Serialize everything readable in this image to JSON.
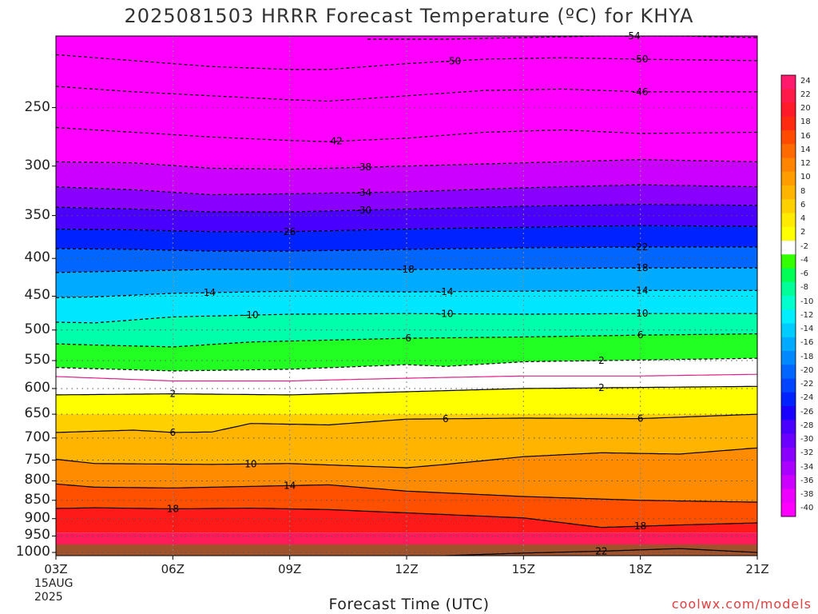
{
  "title": "2025081503 HRRR Forecast Temperature (ºC) for KHYA",
  "xlabel": "Forecast Time (UTC)",
  "credit": "coolwx.com/models",
  "date_label": [
    "15AUG",
    "2025"
  ],
  "chart_data": {
    "type": "heatmap",
    "title": "2025081503 HRRR Forecast Temperature (ºC) for KHYA",
    "xlabel": "Forecast Time (UTC)",
    "ylabel": "",
    "x_ticks": [
      "03Z",
      "06Z",
      "09Z",
      "12Z",
      "15Z",
      "18Z",
      "21Z"
    ],
    "x_hours": [
      3,
      21
    ],
    "y_ticks": [
      250,
      300,
      350,
      400,
      450,
      500,
      550,
      600,
      650,
      700,
      750,
      800,
      850,
      900,
      950,
      1000
    ],
    "y_range_hpa": [
      200,
      1010
    ],
    "y_scale": "log-pressure",
    "grid": true,
    "colorbar": {
      "labels": [
        "24",
        "22",
        "20",
        "18",
        "16",
        "14",
        "12",
        "10",
        "8",
        "6",
        "4",
        "2",
        "-2",
        "-4",
        "-6",
        "-8",
        "-10",
        "-12",
        "-14",
        "-16",
        "-18",
        "-20",
        "-22",
        "-24",
        "-26",
        "-28",
        "-30",
        "-32",
        "-34",
        "-36",
        "-38",
        "-40"
      ],
      "colors": [
        "#ff1a6e",
        "#ff1a4a",
        "#ff1a2a",
        "#ff2a10",
        "#ff4a00",
        "#ff6a00",
        "#ff8400",
        "#ff9c00",
        "#ffb400",
        "#ffd000",
        "#ffea00",
        "#ffff00",
        "#ffffff",
        "#33ff00",
        "#00ff55",
        "#00ff99",
        "#00ffcc",
        "#00eeff",
        "#00ccff",
        "#00aaff",
        "#0088ff",
        "#0066ff",
        "#0044ff",
        "#0022ff",
        "#1a00ff",
        "#4a00ff",
        "#6a00ff",
        "#8a00ff",
        "#aa00ff",
        "#cc00ff",
        "#ee00ff",
        "#ff00ff"
      ]
    },
    "contours": [
      {
        "label": "-54",
        "x": [
          11,
          13,
          15,
          17,
          19,
          21
        ],
        "p": [
          202,
          202,
          201,
          200,
          200,
          201
        ],
        "dashed": true,
        "labels_at": [
          {
            "hour": 17.8,
            "text": "-54"
          }
        ]
      },
      {
        "label": "-50",
        "x": [
          3,
          5,
          7,
          9,
          10,
          12,
          14,
          16,
          18,
          21
        ],
        "p": [
          212,
          216,
          220,
          222,
          222,
          218,
          215,
          214,
          215,
          216
        ],
        "dashed": true,
        "labels_at": [
          {
            "hour": 13.2,
            "text": "-50"
          },
          {
            "hour": 18,
            "text": "-50"
          }
        ]
      },
      {
        "label": "-46",
        "x": [
          3,
          5,
          7,
          9,
          10,
          12,
          14,
          16,
          18,
          21
        ],
        "p": [
          234,
          238,
          241,
          244,
          245,
          241,
          237,
          236,
          238,
          238
        ],
        "dashed": true,
        "labels_at": [
          {
            "hour": 18,
            "text": "-46"
          }
        ]
      },
      {
        "label": "-42",
        "x": [
          3,
          5,
          7,
          9,
          10,
          12,
          14,
          16,
          18,
          21
        ],
        "p": [
          266,
          270,
          274,
          277,
          278,
          275,
          270,
          268,
          271,
          270
        ],
        "dashed": true,
        "labels_at": [
          {
            "hour": 10.2,
            "text": "42"
          }
        ]
      },
      {
        "label": "-38",
        "x": [
          3,
          5,
          7,
          9,
          12,
          15,
          18,
          21
        ],
        "p": [
          296,
          297,
          302,
          303,
          300,
          297,
          294,
          296
        ],
        "dashed": true,
        "labels_at": [
          {
            "hour": 10.9,
            "text": "-38"
          }
        ]
      },
      {
        "label": "-34",
        "x": [
          3,
          5,
          7,
          9,
          12,
          15,
          18,
          21
        ],
        "p": [
          320,
          323,
          328,
          327,
          325,
          321,
          318,
          320
        ],
        "dashed": true,
        "labels_at": [
          {
            "hour": 10.9,
            "text": "-34"
          }
        ]
      },
      {
        "label": "-30",
        "x": [
          3,
          5,
          7,
          9,
          12,
          15,
          18,
          21
        ],
        "p": [
          341,
          343,
          346,
          346,
          343,
          340,
          338,
          339
        ],
        "dashed": true,
        "labels_at": [
          {
            "hour": 10.9,
            "text": "-30"
          }
        ]
      },
      {
        "label": "-26",
        "x": [
          3,
          5,
          7,
          9,
          12,
          15,
          18,
          21
        ],
        "p": [
          365,
          366,
          368,
          368,
          365,
          363,
          361,
          362
        ],
        "dashed": true,
        "labels_at": [
          {
            "hour": 9,
            "text": "26"
          }
        ]
      },
      {
        "label": "-22",
        "x": [
          3,
          5,
          7,
          9,
          12,
          15,
          18,
          21
        ],
        "p": [
          388,
          389,
          391,
          391,
          389,
          387,
          386,
          386
        ],
        "dashed": true,
        "labels_at": [
          {
            "hour": 18,
            "text": "-22"
          }
        ]
      },
      {
        "label": "-18",
        "x": [
          3,
          5,
          7,
          9,
          12,
          15,
          18,
          21
        ],
        "p": [
          418,
          416,
          414,
          414,
          414,
          413,
          412,
          412
        ],
        "dashed": true,
        "labels_at": [
          {
            "hour": 12,
            "text": "-18"
          },
          {
            "hour": 18,
            "text": "-18"
          }
        ]
      },
      {
        "label": "-14",
        "x": [
          3,
          4,
          6,
          9,
          12,
          15,
          18,
          21
        ],
        "p": [
          452,
          451,
          446,
          443,
          444,
          443,
          442,
          442
        ],
        "dashed": true,
        "labels_at": [
          {
            "hour": 6.9,
            "text": "-14"
          },
          {
            "hour": 13,
            "text": "-14"
          },
          {
            "hour": 18,
            "text": "-14"
          }
        ]
      },
      {
        "label": "-10",
        "x": [
          3,
          4,
          6,
          9,
          12,
          15,
          18,
          21
        ],
        "p": [
          488,
          489,
          480,
          476,
          475,
          476,
          475,
          475
        ],
        "dashed": true,
        "labels_at": [
          {
            "hour": 8,
            "text": "-10"
          },
          {
            "hour": 13,
            "text": "-10"
          },
          {
            "hour": 18,
            "text": "-10"
          }
        ]
      },
      {
        "label": "-6",
        "x": [
          3,
          4,
          6,
          8,
          12,
          15,
          18,
          21
        ],
        "p": [
          522,
          524,
          527,
          519,
          513,
          511,
          508,
          506
        ],
        "dashed": true,
        "labels_at": [
          {
            "hour": 12,
            "text": "-6"
          },
          {
            "hour": 18,
            "text": "6"
          }
        ]
      },
      {
        "label": "-2",
        "x": [
          3,
          6,
          9,
          12,
          13,
          15,
          18,
          21
        ],
        "p": [
          562,
          568,
          565,
          557,
          560,
          552,
          549,
          546
        ],
        "dashed": true,
        "labels_at": [
          {
            "hour": 17,
            "text": "2"
          }
        ]
      },
      {
        "label": "0",
        "x": [
          3,
          6,
          9,
          12,
          15,
          18,
          21
        ],
        "p": [
          578,
          586,
          586,
          581,
          577,
          577,
          574
        ],
        "dashed": false,
        "color": "#e0208a",
        "labels_at": []
      },
      {
        "label": "2",
        "x": [
          3,
          6,
          9,
          12,
          15,
          18,
          21
        ],
        "p": [
          612,
          610,
          612,
          606,
          600,
          598,
          596
        ],
        "dashed": false,
        "labels_at": [
          {
            "hour": 6,
            "text": "2"
          },
          {
            "hour": 17,
            "text": "2"
          }
        ]
      },
      {
        "label": "6",
        "x": [
          3,
          5,
          6,
          7,
          8,
          10,
          12,
          15,
          18,
          21
        ],
        "p": [
          688,
          683,
          688,
          687,
          669,
          672,
          660,
          658,
          659,
          650
        ],
        "dashed": false,
        "labels_at": [
          {
            "hour": 6,
            "text": "6"
          },
          {
            "hour": 13,
            "text": "6"
          },
          {
            "hour": 18,
            "text": "6"
          }
        ]
      },
      {
        "label": "10",
        "x": [
          3,
          4,
          7,
          9,
          12,
          13,
          15,
          17,
          19,
          21
        ],
        "p": [
          748,
          758,
          760,
          758,
          768,
          760,
          742,
          733,
          736,
          722
        ],
        "dashed": false,
        "labels_at": [
          {
            "hour": 8,
            "text": "10"
          }
        ]
      },
      {
        "label": "14",
        "x": [
          3,
          4,
          6,
          8,
          10,
          12,
          15,
          18,
          21
        ],
        "p": [
          808,
          816,
          818,
          814,
          810,
          826,
          840,
          850,
          855
        ],
        "dashed": false,
        "labels_at": [
          {
            "hour": 9,
            "text": "14"
          }
        ]
      },
      {
        "label": "18",
        "x": [
          3,
          4,
          6,
          8,
          10,
          12,
          15,
          17,
          19,
          21
        ],
        "p": [
          872,
          870,
          873,
          871,
          875,
          884,
          898,
          925,
          918,
          912
        ],
        "dashed": false,
        "labels_at": [
          {
            "hour": 6,
            "text": "18"
          },
          {
            "hour": 18,
            "text": "18"
          }
        ]
      },
      {
        "label": "22",
        "x": [
          13,
          15,
          17,
          19,
          21
        ],
        "p": [
          1010,
          1002,
          996,
          988,
          1000
        ],
        "dashed": false,
        "labels_at": [
          {
            "hour": 17,
            "text": "22"
          }
        ]
      }
    ],
    "fill_bands": [
      {
        "p_top": 200,
        "p_bottom": 296,
        "color": "#ff00ff"
      },
      {
        "p_top": 296,
        "p_bottom": 320,
        "color": "#cc00ff"
      },
      {
        "p_top": 320,
        "p_bottom": 341,
        "color": "#8a00ff"
      },
      {
        "p_top": 341,
        "p_bottom": 365,
        "color": "#4a00ff"
      },
      {
        "p_top": 365,
        "p_bottom": 388,
        "color": "#0022ff"
      },
      {
        "p_top": 388,
        "p_bottom": 418,
        "color": "#0066ff"
      },
      {
        "p_top": 418,
        "p_bottom": 452,
        "color": "#00aaff"
      },
      {
        "p_top": 452,
        "p_bottom": 488,
        "color": "#00e6ff"
      },
      {
        "p_top": 488,
        "p_bottom": 522,
        "color": "#00ffaa"
      },
      {
        "p_top": 522,
        "p_bottom": 562,
        "color": "#22ff22"
      },
      {
        "p_top": 562,
        "p_bottom": 578,
        "color": "#ffffff"
      },
      {
        "p_top": 578,
        "p_bottom": 612,
        "color": "#ffffff"
      },
      {
        "p_top": 612,
        "p_bottom": 650,
        "color": "#ffff00"
      },
      {
        "p_top": 650,
        "p_bottom": 688,
        "color": "#ffd000"
      },
      {
        "p_top": 688,
        "p_bottom": 748,
        "color": "#ffb400"
      },
      {
        "p_top": 748,
        "p_bottom": 808,
        "color": "#ff8c00"
      },
      {
        "p_top": 808,
        "p_bottom": 872,
        "color": "#ff5000"
      },
      {
        "p_top": 872,
        "p_bottom": 940,
        "color": "#ff1a1a"
      },
      {
        "p_top": 940,
        "p_bottom": 1010,
        "color": "#ff1a5a"
      }
    ],
    "ground_color": "#a0522d"
  }
}
